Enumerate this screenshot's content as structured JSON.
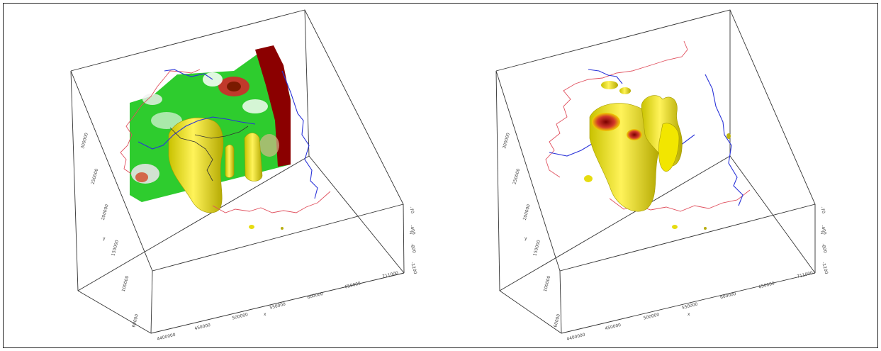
{
  "panels": [
    {
      "id": "left",
      "x_ticks": [
        "4400000",
        "450000",
        "500000",
        "550000",
        "600000",
        "650000",
        "711000"
      ],
      "x_label": "x",
      "y_ticks": [
        "60000",
        "100000",
        "150000",
        "200000",
        "250000",
        "300000"
      ],
      "y_label": "y",
      "z_ticks": [
        "-70",
        "-400",
        "-800",
        "-1200"
      ],
      "z_label": "z",
      "colors": {
        "green": "#2ecc2e",
        "red": "#c0392b",
        "darkred": "#8b0000",
        "yellow": "#f2e600",
        "river_blue": "#2a33d8",
        "river_red": "#e0505e"
      }
    },
    {
      "id": "right",
      "x_ticks": [
        "4400000",
        "450000",
        "500000",
        "550000",
        "600000",
        "650000",
        "711000"
      ],
      "x_label": "x",
      "y_ticks": [
        "60000",
        "100000",
        "150000",
        "200000",
        "250000",
        "300000"
      ],
      "y_label": "y",
      "z_ticks": [
        "-70",
        "-400",
        "-800",
        "-1200"
      ],
      "z_label": "z",
      "colors": {
        "yellow": "#f2e600",
        "red": "#c0392b",
        "river_blue": "#2a33d8",
        "river_red": "#e0505e"
      }
    }
  ]
}
